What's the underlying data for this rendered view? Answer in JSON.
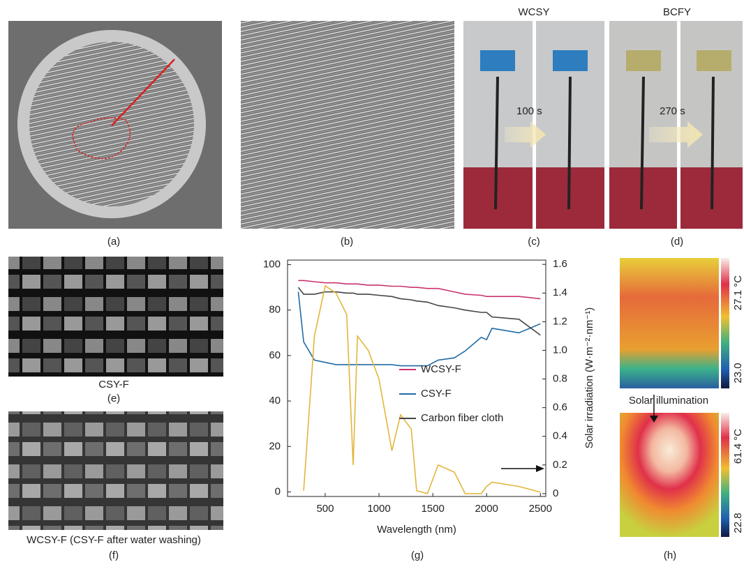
{
  "panel_labels": [
    "(a)",
    "(b)",
    "(c)",
    "(d)",
    "(e)",
    "(f)",
    "(g)",
    "(h)"
  ],
  "panel_c": {
    "title": "WCSY",
    "time": "100 s"
  },
  "panel_d": {
    "title": "BCFY",
    "time": "270 s"
  },
  "panel_e": {
    "caption": "CSY-F"
  },
  "panel_f": {
    "caption": "WCSY-F (CSY-F after water washing)"
  },
  "panel_h": {
    "annotation": "Solar illumination",
    "top_scale": {
      "max": "27.1 °C",
      "min": "23.0"
    },
    "bottom_scale": {
      "max": "61.4 °C",
      "min": "22.8"
    }
  },
  "chart_data": {
    "type": "line",
    "x_label": "Wavelength (nm)",
    "y2_label": "Solar irradiation (W·m⁻²·nm⁻¹)",
    "x": [
      250,
      300,
      400,
      500,
      600,
      700,
      760,
      800,
      900,
      1000,
      1120,
      1200,
      1300,
      1350,
      1450,
      1550,
      1700,
      1800,
      1950,
      2000,
      2050,
      2300,
      2500
    ],
    "series": [
      {
        "name": "WCSY-F",
        "color": "#c8336e",
        "values": [
          93,
          93,
          92.5,
          92,
          92,
          91.5,
          91.5,
          91.5,
          91,
          91,
          90.5,
          90.5,
          90,
          90,
          89.5,
          89.5,
          88,
          87,
          86.5,
          86,
          86,
          86,
          85
        ]
      },
      {
        "name": "CSY-F",
        "color": "#1f6aa5",
        "values": [
          88,
          66,
          58,
          57,
          56,
          56,
          56,
          56,
          56,
          56,
          56,
          55.5,
          55.5,
          55.5,
          55.5,
          58,
          59,
          62,
          68,
          67,
          72,
          70,
          74
        ]
      },
      {
        "name": "Carbon fiber cloth",
        "color": "#444444",
        "values": [
          90,
          87,
          87,
          88,
          88,
          87.5,
          87.5,
          87,
          87,
          86.5,
          86,
          85,
          84.5,
          84,
          83.5,
          82,
          81,
          80,
          79,
          79,
          77,
          76,
          69
        ]
      },
      {
        "color": "#e3b53b",
        "axis": "y2",
        "values": [
          null,
          0.02,
          1.1,
          1.45,
          1.4,
          1.25,
          0.2,
          1.1,
          1.0,
          0.8,
          0.3,
          0.55,
          0.45,
          0.02,
          0,
          0.2,
          0.15,
          0,
          0,
          0.05,
          0.08,
          0.05,
          0.01
        ]
      }
    ],
    "xlim": [
      150,
      2550
    ],
    "xticks": [
      500,
      1000,
      1500,
      2000,
      2500
    ],
    "ylim": [
      -2,
      102
    ],
    "yticks": [
      0,
      20,
      40,
      60,
      80,
      100
    ],
    "y2lim": [
      -0.02,
      1.63
    ],
    "y2ticks": [
      0,
      0.2,
      0.4,
      0.6,
      0.8,
      {
        "value": 1,
        "label": "1.0"
      },
      1.2,
      1.4,
      1.6
    ]
  }
}
